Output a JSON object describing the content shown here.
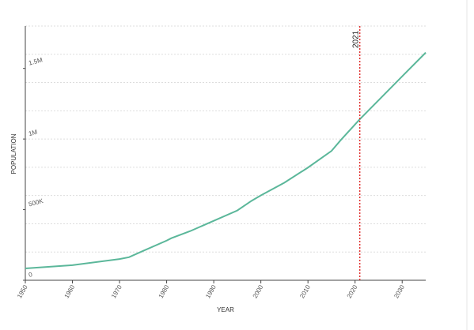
{
  "chart_data": {
    "type": "line",
    "x_label": "YEAR",
    "y_label": "POPULATION",
    "x": [
      1950,
      1960,
      1970,
      1972,
      1975,
      1980,
      1981,
      1985,
      1990,
      1995,
      1998,
      2000,
      2005,
      2010,
      2015,
      2017,
      2021,
      2025,
      2030,
      2035
    ],
    "series": [
      {
        "name": "Population",
        "color": "#5bb79a",
        "values": [
          84000,
          107000,
          150000,
          163000,
          208000,
          281000,
          298000,
          348000,
          421000,
          494000,
          562000,
          601000,
          691000,
          798000,
          916000,
          994000,
          1140000,
          1275000,
          1444000,
          1612000
        ]
      }
    ],
    "xlim": [
      1950,
      2035
    ],
    "xticks": [
      1950,
      1960,
      1970,
      1980,
      1990,
      2000,
      2010,
      2020,
      2030
    ],
    "ylim": [
      0,
      1800000
    ],
    "yticks": [
      0,
      {
        "value": 500000,
        "label": "500K"
      },
      {
        "value": 1000000,
        "label": "1M"
      },
      {
        "value": 1500000,
        "label": "1.5M"
      }
    ],
    "ygrid": [
      200000,
      400000,
      600000,
      800000,
      1000000,
      1200000,
      1400000,
      1600000,
      1800000
    ],
    "marker_x": 2021,
    "marker_color": "#e0312f"
  }
}
